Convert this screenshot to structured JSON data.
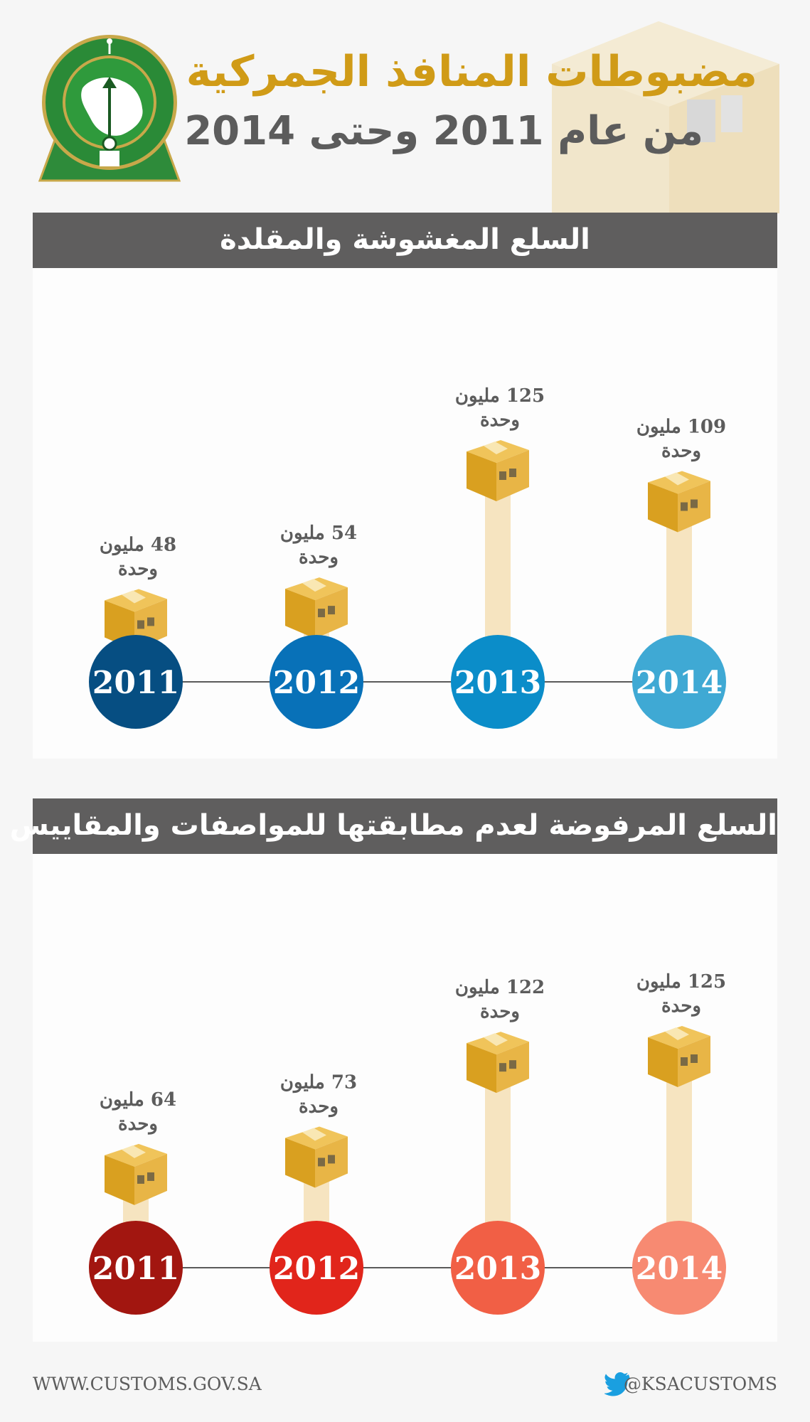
{
  "header": {
    "title": "مضبوطات المنافذ الجمركية",
    "subtitle": "من عام 2011 وحتى 2014",
    "logo_icon": "saudi-customs-emblem-icon"
  },
  "colors": {
    "title": "#d09b17",
    "bar": "#f6e4c0",
    "box": "#e0a92a",
    "panel1_circles": [
      "#064e82",
      "#0871b8",
      "#0b8dc9",
      "#3fa9d4"
    ],
    "panel2_circles": [
      "#a21610",
      "#e1251b",
      "#f15f45",
      "#f78a72"
    ]
  },
  "chart_data": [
    {
      "type": "bar",
      "title": "السلع المغشوشة والمقلدة",
      "categories": [
        "2011",
        "2012",
        "2013",
        "2014"
      ],
      "values": [
        48,
        54,
        125,
        109
      ],
      "labels": [
        [
          "48 مليون",
          "وحدة"
        ],
        [
          "54 مليون",
          "وحدة"
        ],
        [
          "125 مليون",
          "وحدة"
        ],
        [
          "109 مليون",
          "وحدة"
        ]
      ]
    },
    {
      "type": "bar",
      "title": "السلع المرفوضة لعدم مطابقتها للمواصفات والمقاييس",
      "categories": [
        "2011",
        "2012",
        "2013",
        "2014"
      ],
      "values": [
        64,
        73,
        122,
        125
      ],
      "labels": [
        [
          "64 مليون",
          "وحدة"
        ],
        [
          "73 مليون",
          "وحدة"
        ],
        [
          "122 مليون",
          "وحدة"
        ],
        [
          "125 مليون",
          "وحدة"
        ]
      ]
    }
  ],
  "footer": {
    "url": "WWW.CUSTOMS.GOV.SA",
    "twitter": "@KSACUSTOMS",
    "twitter_icon": "twitter-bird-icon"
  }
}
